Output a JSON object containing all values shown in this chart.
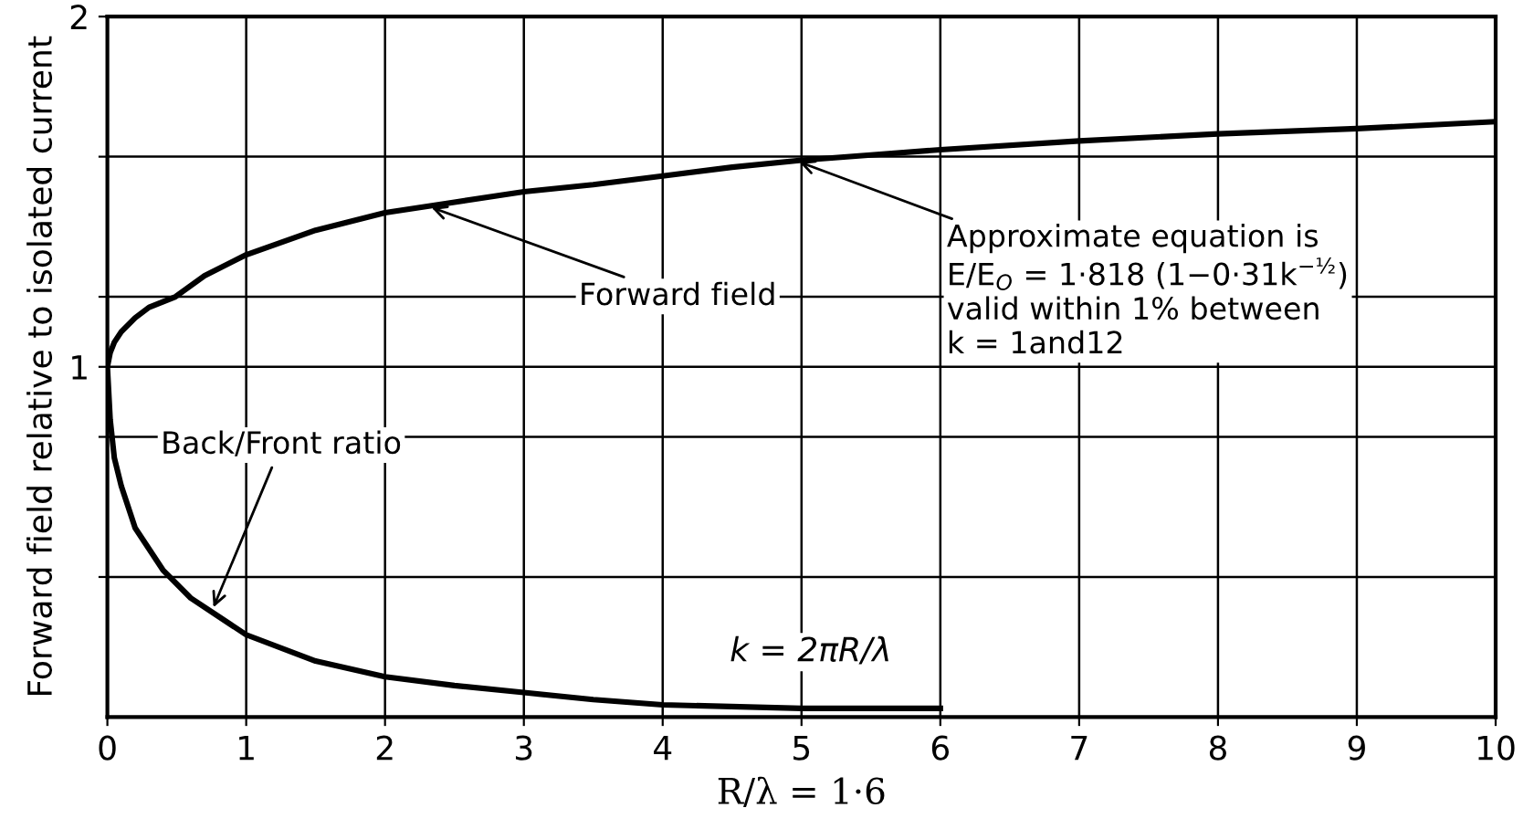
{
  "chart_data": {
    "type": "line",
    "xlabel": "R/λ = 1·6",
    "ylabel": "Forward field relative to isolated current",
    "xlim": [
      0,
      10
    ],
    "ylim": [
      0,
      2
    ],
    "xticks": [
      0,
      1,
      2,
      3,
      4,
      5,
      6,
      7,
      8,
      9,
      10
    ],
    "yticks": [
      {
        "value": 0.4,
        "label": null
      },
      {
        "value": 0.8,
        "label": null
      },
      1,
      {
        "value": 1.2,
        "label": null
      },
      {
        "value": 1.6,
        "label": null
      },
      2
    ],
    "grid": true,
    "line_style": "solid",
    "marker": "none",
    "series": [
      {
        "color": "#000000",
        "x": [
          6,
          5,
          4,
          3.5,
          3,
          2.5,
          2,
          1.5,
          1,
          0.79,
          0.6,
          0.4,
          0.2,
          0.1,
          0.05,
          0.02,
          0,
          0.02,
          0.05,
          0.1,
          0.2,
          0.3,
          0.49,
          0.7,
          1,
          1.5,
          2,
          2.5,
          3,
          3.5,
          4,
          4.5,
          5,
          5.5,
          6,
          7,
          8,
          9,
          10
        ],
        "values": [
          0.025,
          0.025,
          0.035,
          0.05,
          0.07,
          0.09,
          0.115,
          0.16,
          0.235,
          0.29,
          0.34,
          0.42,
          0.54,
          0.66,
          0.74,
          0.85,
          1,
          1.04,
          1.07,
          1.1,
          1.14,
          1.17,
          1.2,
          1.26,
          1.32,
          1.39,
          1.44,
          1.47,
          1.5,
          1.52,
          1.545,
          1.57,
          1.59,
          1.605,
          1.62,
          1.645,
          1.665,
          1.68,
          1.7
        ]
      }
    ],
    "annotations": [
      {
        "text": "Forward field",
        "x": 2.3,
        "y": 1.46
      },
      {
        "text": "Back/Front ratio",
        "x": 0.75,
        "y": 0.3
      },
      {
        "text": "Approximate equation is\nE/E$_{O}$ = 1·818 (1−0·31k$^{−½}$)\nvalid within 1% between\nk = 1and12",
        "x": 4.95,
        "y": 1.59
      },
      "k = 2πR/λ"
    ]
  }
}
